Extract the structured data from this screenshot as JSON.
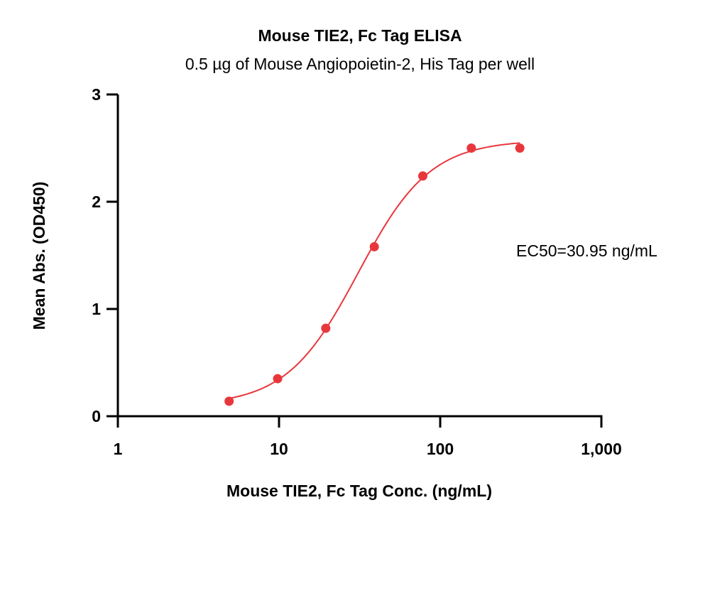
{
  "chart_data": {
    "type": "scatter",
    "title": "Mouse TIE2, Fc Tag ELISA",
    "subtitle": "0.5 µg of Mouse Angiopoietin-2, His Tag per well",
    "xlabel": "Mouse TIE2, Fc Tag Conc. (ng/mL)",
    "ylabel": "Mean Abs. (OD450)",
    "x_scale": "log",
    "xlim": [
      1,
      1000
    ],
    "ylim": [
      0,
      3
    ],
    "x_ticks": [
      1,
      10,
      100,
      1000
    ],
    "x_tick_labels": [
      "1",
      "10",
      "100",
      "1,000"
    ],
    "y_ticks": [
      0,
      1,
      2,
      3
    ],
    "y_tick_labels": [
      "0",
      "1",
      "2",
      "3"
    ],
    "grid": false,
    "color": "#e8373c",
    "series": [
      {
        "x": [
          4.9,
          9.8,
          19.5,
          39,
          78,
          156,
          312
        ],
        "y": [
          0.14,
          0.35,
          0.82,
          1.58,
          2.24,
          2.5,
          2.5
        ]
      }
    ],
    "fit_curve": {
      "model": "4PL",
      "x_range": [
        4.9,
        312
      ]
    },
    "annotations": [
      {
        "text": "EC50=30.95 ng/mL"
      }
    ]
  }
}
